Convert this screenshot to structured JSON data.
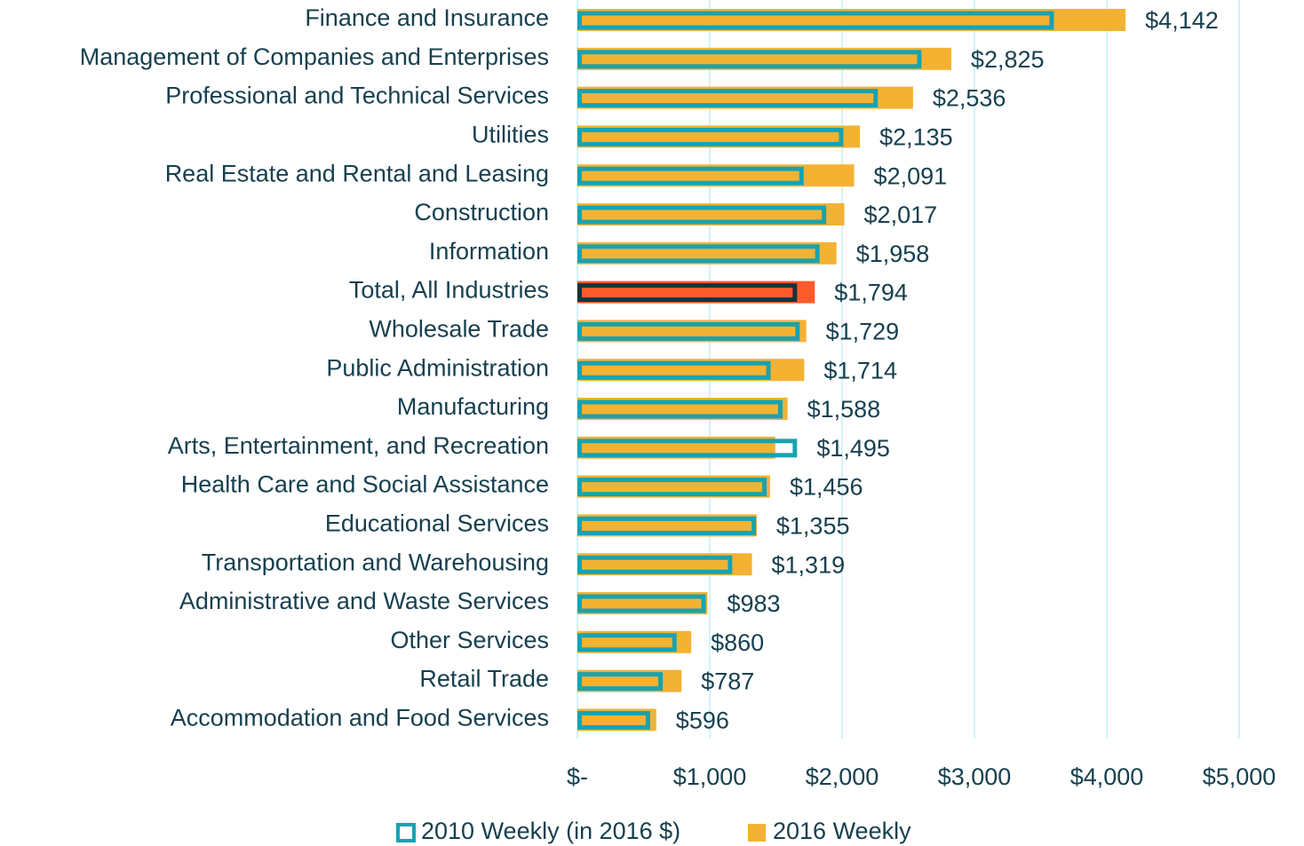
{
  "chart_data": {
    "type": "bar",
    "orientation": "horizontal",
    "categories": [
      "Finance and Insurance",
      "Management of Companies and Enterprises",
      "Professional and Technical Services",
      "Utilities",
      "Real Estate and Rental and Leasing",
      "Construction",
      "Information",
      "Total, All Industries",
      "Wholesale Trade",
      "Public Administration",
      "Manufacturing",
      "Arts, Entertainment, and Recreation",
      "Health Care and Social Assistance",
      "Educational Services",
      "Transportation and Warehousing",
      "Administrative and Waste Services",
      "Other Services",
      "Retail Trade",
      "Accommodation and Food Services"
    ],
    "series": [
      {
        "name": "2010 Weekly (in 2016 $)",
        "color": "#17a3b0",
        "style": "outline",
        "values": [
          3600,
          2600,
          2270,
          2010,
          1710,
          1880,
          1830,
          1660,
          1680,
          1460,
          1550,
          1660,
          1430,
          1350,
          1170,
          970,
          750,
          645,
          550
        ]
      },
      {
        "name": "2016 Weekly",
        "color": "#f4b233",
        "style": "fill",
        "values": [
          4142,
          2825,
          2536,
          2135,
          2091,
          2017,
          1958,
          1794,
          1729,
          1714,
          1588,
          1495,
          1456,
          1355,
          1319,
          983,
          860,
          787,
          596
        ],
        "value_labels": [
          "$4,142",
          "$2,825",
          "$2,536",
          "$2,135",
          "$2,091",
          "$2,017",
          "$1,958",
          "$1,794",
          "$1,729",
          "$1,714",
          "$1,588",
          "$1,495",
          "$1,456",
          "$1,355",
          "$1,319",
          "$983",
          "$860",
          "$787",
          "$596"
        ]
      }
    ],
    "highlight": {
      "index": 7,
      "fill": "#ff5a2b",
      "outline": "#17313d"
    },
    "xlim": [
      0,
      5000
    ],
    "xticks": [
      {
        "value": 0,
        "label": "$-"
      },
      {
        "value": 1000,
        "label": "$1,000"
      },
      {
        "value": 2000,
        "label": "$2,000"
      },
      {
        "value": 3000,
        "label": "$3,000"
      },
      {
        "value": 4000,
        "label": "$4,000"
      },
      {
        "value": 5000,
        "label": "$5,000"
      }
    ],
    "grid": true,
    "grid_color": "#c8eef3",
    "legend": "bottom"
  }
}
